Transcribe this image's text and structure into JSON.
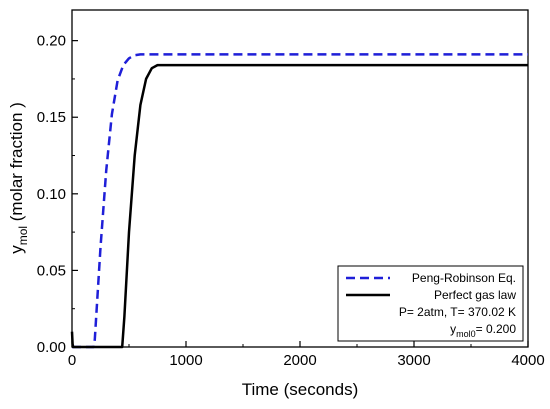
{
  "chart_data": {
    "type": "line",
    "title": "",
    "xlabel": "Time (seconds)",
    "ylabel": {
      "main": "y",
      "sub": "mol",
      "rest": " (molar fraction )"
    },
    "xlim": [
      0,
      4000
    ],
    "ylim": [
      0,
      0.22
    ],
    "x_ticks": [
      0,
      1000,
      2000,
      3000,
      4000
    ],
    "x_tick_labels": [
      "0",
      "1000",
      "2000",
      "3000",
      "4000"
    ],
    "y_ticks": [
      0,
      0.05,
      0.1,
      0.15,
      0.2
    ],
    "y_tick_labels": [
      "0.00",
      "0.05",
      "0.10",
      "0.15",
      "0.20"
    ],
    "grid": false,
    "legend_position": "bottom-right",
    "series": [
      {
        "name": "Peng-Robinson Eq.",
        "color": "#1f1fd8",
        "style": "dashed",
        "x": [
          0,
          190,
          200,
          250,
          300,
          350,
          400,
          450,
          500,
          550,
          600,
          700,
          800,
          4000
        ],
        "y": [
          0,
          0,
          0.005,
          0.065,
          0.115,
          0.152,
          0.174,
          0.184,
          0.1885,
          0.1905,
          0.191,
          0.191,
          0.191,
          0.191
        ]
      },
      {
        "name": "Perfect gas law",
        "color": "#000000",
        "style": "solid",
        "x": [
          0,
          5,
          10,
          15,
          440,
          460,
          500,
          550,
          600,
          650,
          700,
          750,
          800,
          4000
        ],
        "y": [
          0.01,
          0.002,
          0,
          0,
          0,
          0.02,
          0.075,
          0.125,
          0.158,
          0.175,
          0.182,
          0.184,
          0.184,
          0.184
        ]
      }
    ],
    "annotations": {
      "line1": "P= 2atm, T= 370.02 K",
      "line2_main": "y",
      "line2_sub": "mol0",
      "line2_rest": "= 0.200"
    }
  }
}
